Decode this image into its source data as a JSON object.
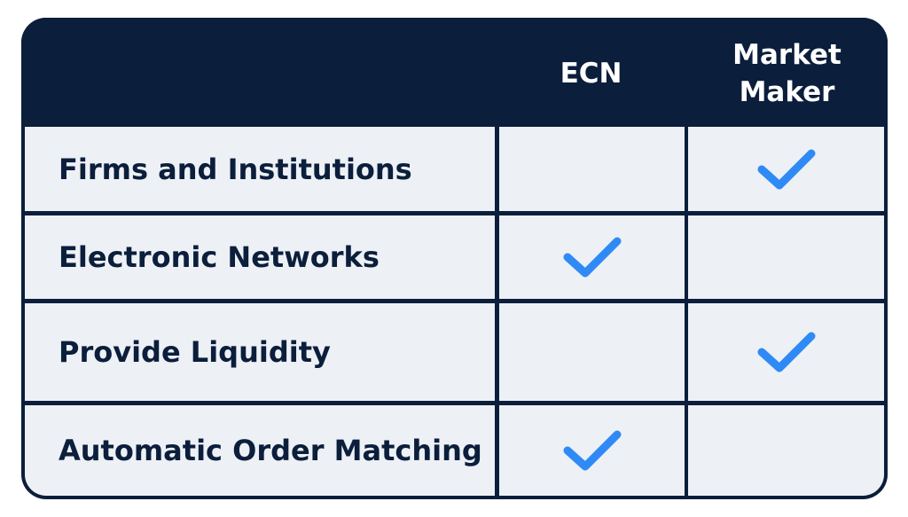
{
  "columns": {
    "ecn": "ECN",
    "market_maker": "Market\nMaker"
  },
  "rows": [
    {
      "label": "Firms and Institutions",
      "ecn": false,
      "market_maker": true
    },
    {
      "label": "Electronic Networks",
      "ecn": true,
      "market_maker": false
    },
    {
      "label": "Provide Liquidity",
      "ecn": false,
      "market_maker": true
    },
    {
      "label": "Automatic Order Matching",
      "ecn": true,
      "market_maker": false
    }
  ],
  "colors": {
    "header": "#0b1e3b",
    "cell": "#edf0f5",
    "check": "#2f8af5",
    "text": "#0b1e3b"
  },
  "icons": {
    "check": "check-icon"
  }
}
